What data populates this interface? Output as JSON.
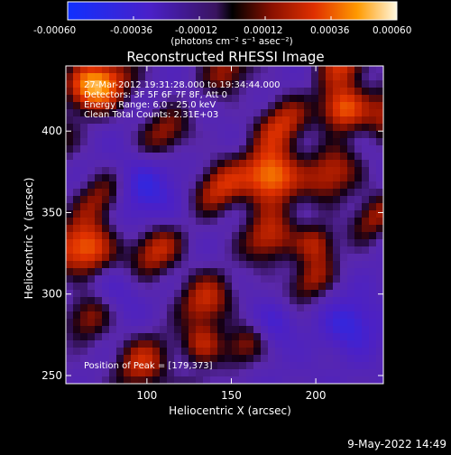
{
  "colorbar": {
    "tick_labels": [
      "-0.00060",
      "-0.00036",
      "-0.00012",
      "0.00012",
      "0.00036",
      "0.00060"
    ],
    "unit_label": "(photons cm⁻² s⁻¹ asec⁻²)"
  },
  "chart_data": {
    "type": "heatmap",
    "title": "Reconstructed RHESSI Image",
    "xlabel": "Heliocentric X (arcsec)",
    "ylabel": "Heliocentric Y (arcsec)",
    "xlim": [
      52,
      240
    ],
    "ylim": [
      245,
      440
    ],
    "x_ticks": [
      100,
      150,
      200
    ],
    "y_ticks": [
      250,
      300,
      350,
      400
    ],
    "x_tick_labels": [
      "100",
      "150",
      "200"
    ],
    "y_tick_labels": [
      "250",
      "300",
      "350",
      "400"
    ],
    "colorscale_range": [
      -0.0006,
      0.0006
    ],
    "annotations": [
      "27-Mar-2012 19:31:28.000 to 19:34:44.000",
      "Detectors: 3F 5F 6F 7F 8F, Att 0",
      "Energy Range: 6.0 - 25.0 keV",
      "Clean     Total Counts: 2.31E+03"
    ],
    "peak_label": "Position of Peak = [179,373]",
    "peak": {
      "x": 179,
      "y": 373
    }
  },
  "footer": {
    "timestamp": "9-May-2022 14:49"
  }
}
